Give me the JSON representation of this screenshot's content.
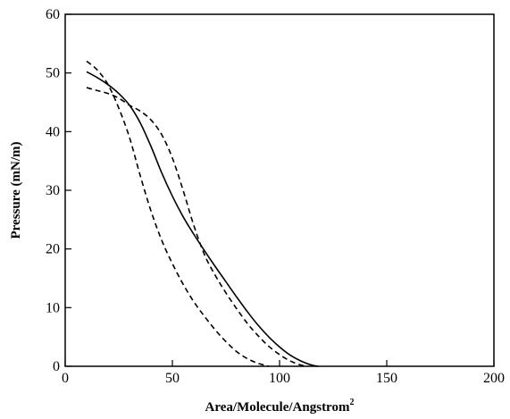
{
  "chart_data": {
    "type": "line",
    "xlabel": "Area/Molecule/Angstrom",
    "xlabel_superscript": "2",
    "ylabel": "Pressure (mN/m)",
    "xlim": [
      0,
      200
    ],
    "ylim": [
      0,
      60
    ],
    "xticks": [
      0,
      50,
      100,
      150,
      200
    ],
    "yticks": [
      0,
      10,
      20,
      30,
      40,
      50,
      60
    ],
    "grid": false,
    "legend": "none",
    "series": [
      {
        "style": "solid",
        "points": [
          [
            10,
            50.2
          ],
          [
            15,
            49.2
          ],
          [
            20,
            48
          ],
          [
            25,
            46.5
          ],
          [
            30,
            44.5
          ],
          [
            35,
            41.5
          ],
          [
            40,
            37.5
          ],
          [
            45,
            33
          ],
          [
            50,
            29
          ],
          [
            55,
            25.5
          ],
          [
            60,
            22.5
          ],
          [
            65,
            19.7
          ],
          [
            70,
            17
          ],
          [
            75,
            14.4
          ],
          [
            80,
            11.8
          ],
          [
            85,
            9.3
          ],
          [
            90,
            7
          ],
          [
            95,
            5
          ],
          [
            100,
            3.3
          ],
          [
            105,
            1.9
          ],
          [
            110,
            0.9
          ],
          [
            115,
            0.2
          ],
          [
            118,
            0
          ]
        ]
      },
      {
        "style": "dashed",
        "points": [
          [
            10,
            52
          ],
          [
            15,
            50.5
          ],
          [
            20,
            48
          ],
          [
            25,
            44
          ],
          [
            30,
            39
          ],
          [
            35,
            32.5
          ],
          [
            40,
            26.5
          ],
          [
            45,
            21.5
          ],
          [
            50,
            17.5
          ],
          [
            55,
            14
          ],
          [
            60,
            11
          ],
          [
            65,
            8.5
          ],
          [
            70,
            6.2
          ],
          [
            75,
            4.2
          ],
          [
            80,
            2.5
          ],
          [
            85,
            1.3
          ],
          [
            90,
            0.5
          ],
          [
            95,
            0
          ]
        ]
      },
      {
        "style": "dashed",
        "points": [
          [
            10,
            47.5
          ],
          [
            15,
            47
          ],
          [
            20,
            46.5
          ],
          [
            25,
            45.7
          ],
          [
            30,
            44.5
          ],
          [
            35,
            43.5
          ],
          [
            40,
            42
          ],
          [
            45,
            39.5
          ],
          [
            50,
            35.5
          ],
          [
            55,
            30
          ],
          [
            60,
            24
          ],
          [
            65,
            19
          ],
          [
            70,
            15.5
          ],
          [
            75,
            12.5
          ],
          [
            80,
            9.8
          ],
          [
            85,
            7.3
          ],
          [
            90,
            5.2
          ],
          [
            95,
            3.4
          ],
          [
            100,
            2
          ],
          [
            105,
            0.9
          ],
          [
            110,
            0.2
          ],
          [
            113,
            0
          ]
        ]
      }
    ]
  }
}
